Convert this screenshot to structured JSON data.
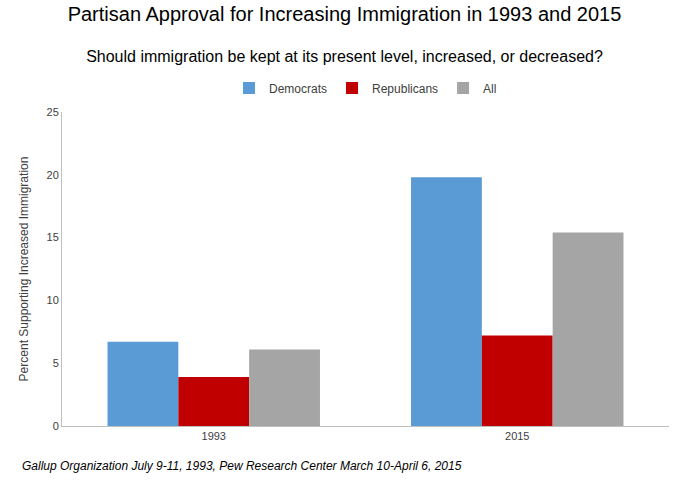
{
  "chart_data": {
    "type": "bar",
    "title": "Partisan Approval for Increasing Immigration in 1993 and 2015",
    "subtitle": "Should immigration be kept at its present level, increased, or decreased?",
    "y_label": "Percent Supporting Increased Immigration",
    "source": "Gallup Organization July 9-11, 1993, Pew Research Center March 10-April 6, 2015",
    "categories": [
      "1993",
      "2015"
    ],
    "series": [
      {
        "name": "Democrats",
        "color": "#5b9bd5",
        "values": [
          6.7,
          19.8
        ]
      },
      {
        "name": "Republicans",
        "color": "#c00000",
        "values": [
          3.9,
          7.2
        ]
      },
      {
        "name": "All",
        "color": "#a5a5a5",
        "values": [
          6.1,
          15.4
        ]
      }
    ],
    "ylim": [
      0,
      25
    ],
    "yticks": [
      0,
      5,
      10,
      15,
      20,
      25
    ],
    "grid": false,
    "legend": "top"
  }
}
